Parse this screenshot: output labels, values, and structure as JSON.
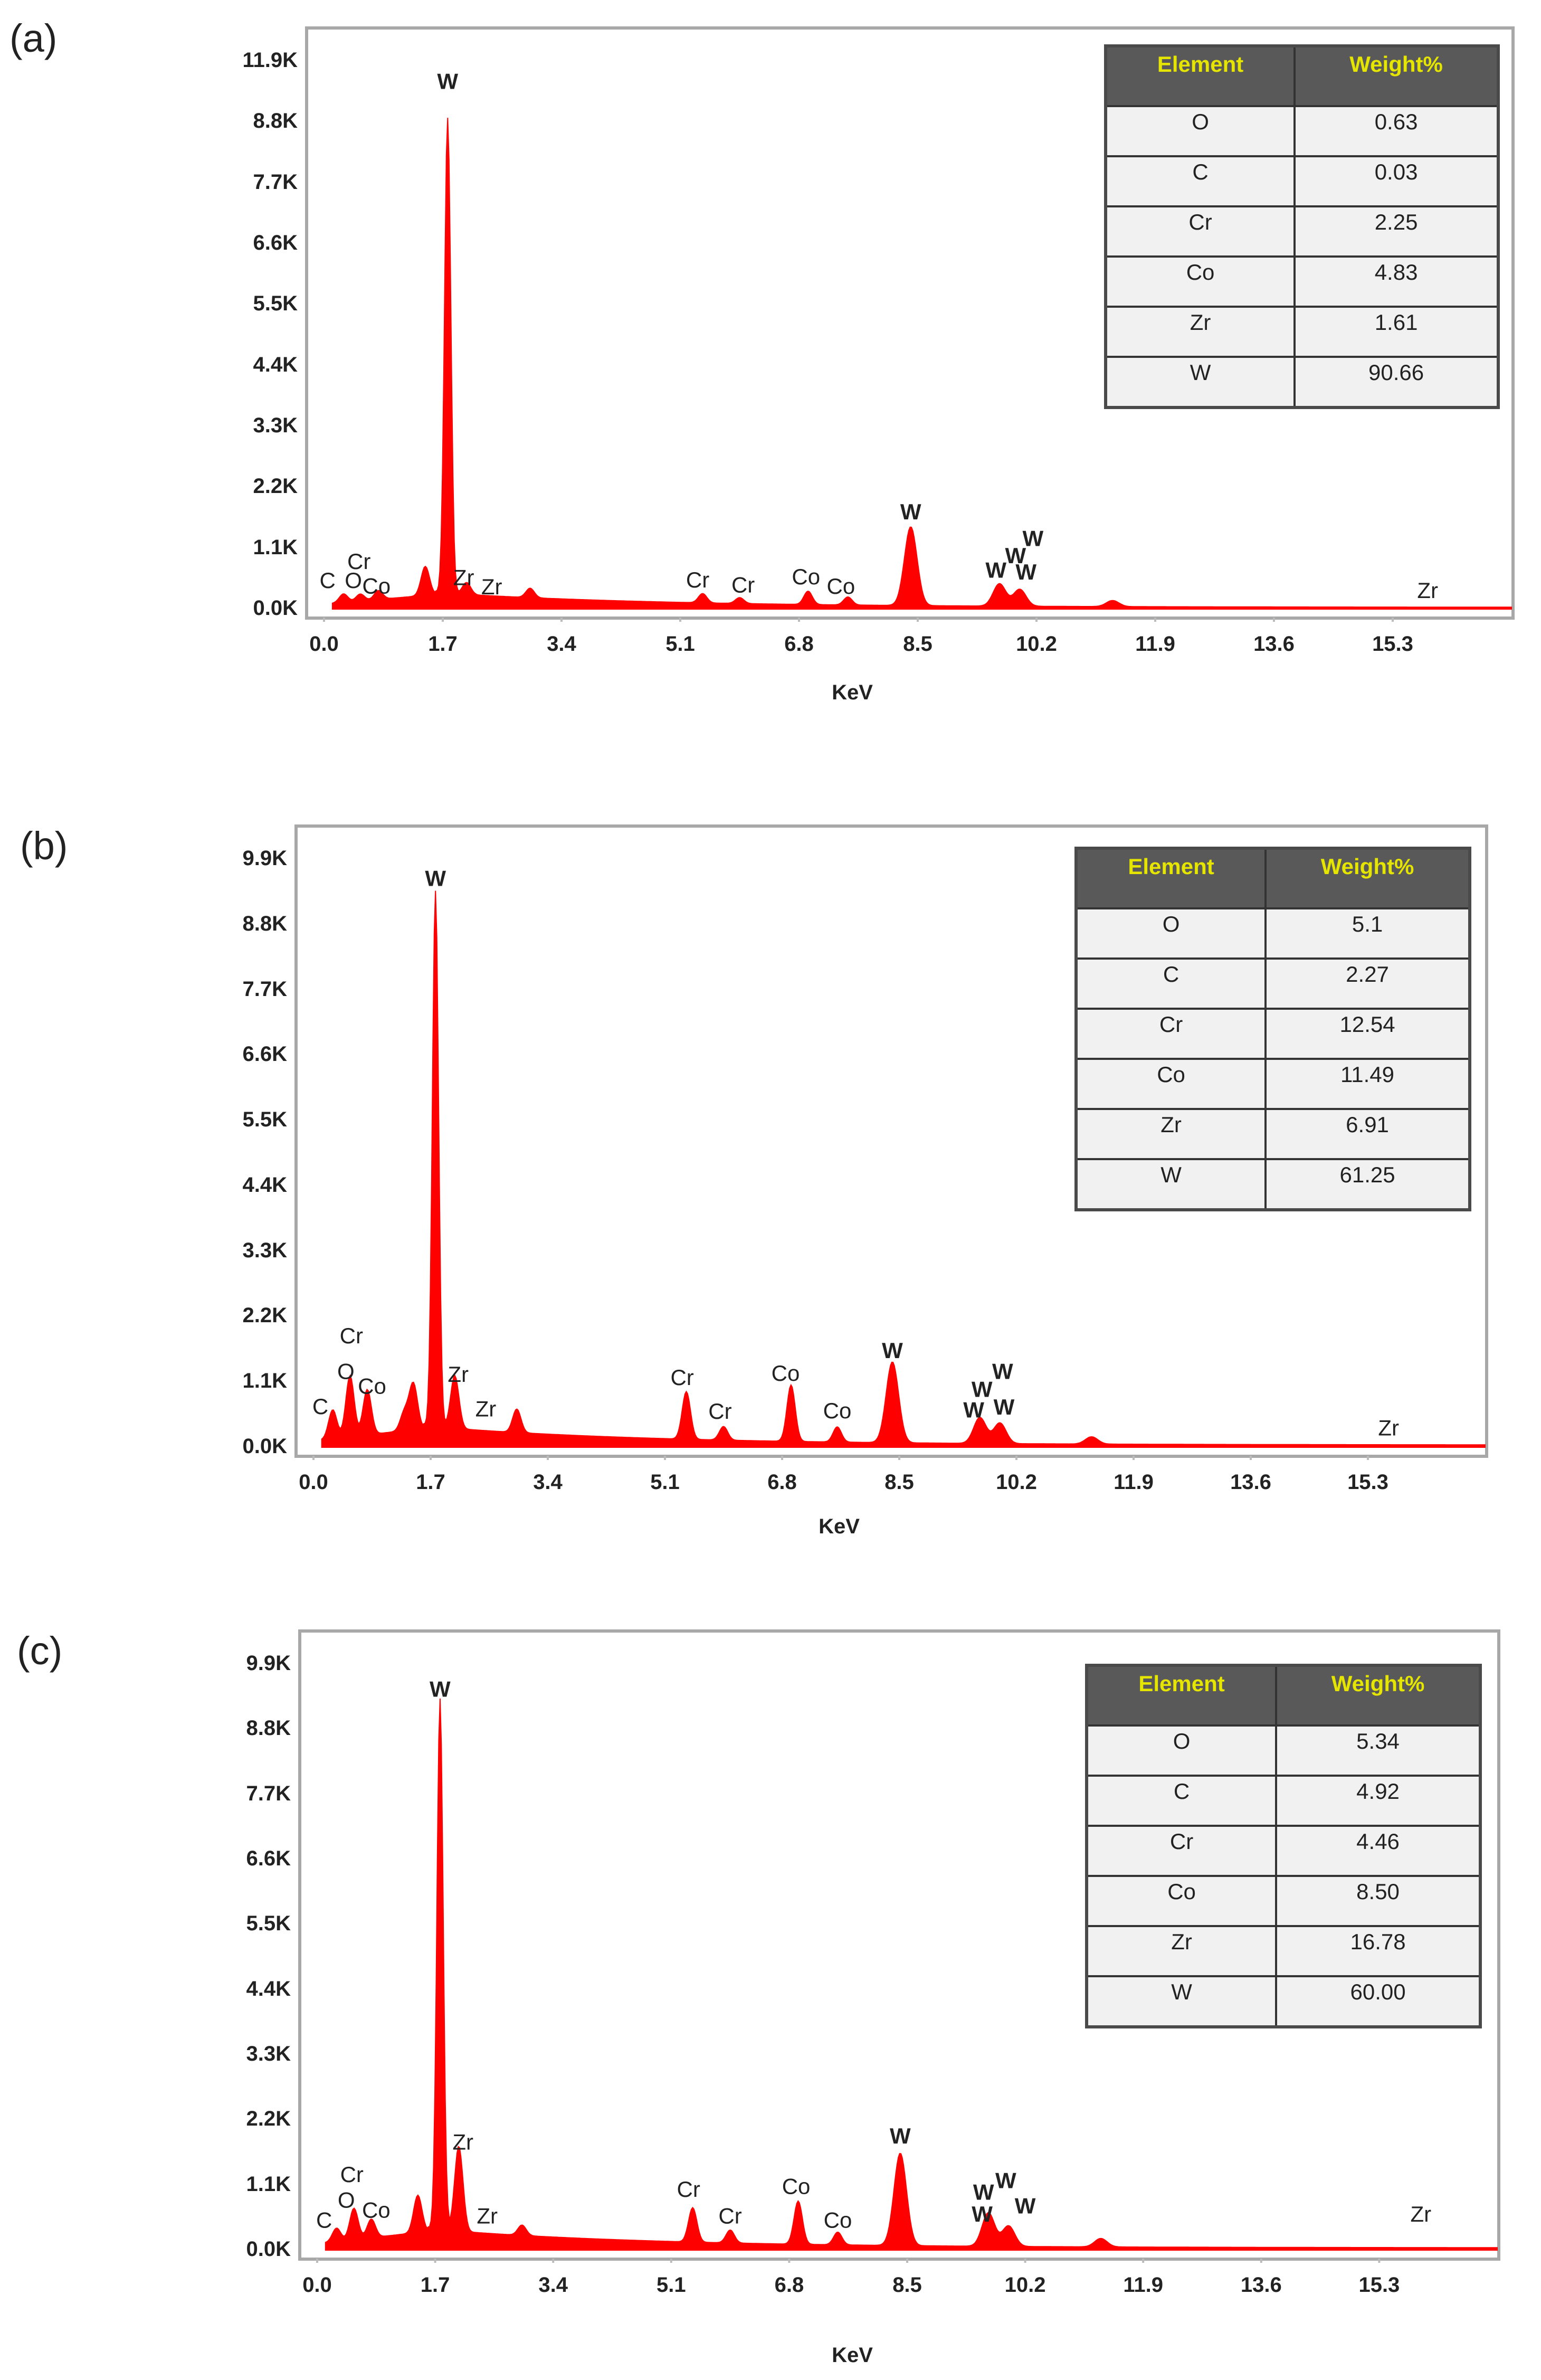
{
  "chart_data": [
    {
      "id": "a",
      "type": "area",
      "panel_label": "(a)",
      "title": "",
      "xlabel": "KeV",
      "ylabel": "",
      "x_ticks": [
        "0.0",
        "1.7",
        "3.4",
        "5.1",
        "6.8",
        "8.5",
        "10.2",
        "11.9",
        "13.6",
        "15.3"
      ],
      "y_ticks": [
        "0.0K",
        "1.1K",
        "2.2K",
        "3.3K",
        "4.4K",
        "5.5K",
        "6.6K",
        "7.7K",
        "8.8K",
        "11.9K"
      ],
      "xlim": [
        0.0,
        17.0
      ],
      "ylim": [
        0,
        11900
      ],
      "grid": false,
      "color": "#ff0000",
      "peaks": [
        {
          "x": 0.28,
          "y": 260
        },
        {
          "x": 0.52,
          "y": 240
        },
        {
          "x": 0.78,
          "y": 300
        },
        {
          "x": 1.45,
          "y": 780
        },
        {
          "x": 1.77,
          "y": 10500
        },
        {
          "x": 2.04,
          "y": 420
        },
        {
          "x": 2.95,
          "y": 330
        },
        {
          "x": 5.42,
          "y": 270
        },
        {
          "x": 5.95,
          "y": 190
        },
        {
          "x": 6.93,
          "y": 340
        },
        {
          "x": 7.5,
          "y": 220
        },
        {
          "x": 8.4,
          "y": 1750
        },
        {
          "x": 9.67,
          "y": 520
        },
        {
          "x": 9.96,
          "y": 400
        },
        {
          "x": 11.29,
          "y": 160
        }
      ],
      "peak_labels": [
        {
          "text": "C",
          "x": 0.05,
          "y": 460,
          "bold": false
        },
        {
          "text": "O",
          "x": 0.42,
          "y": 460,
          "bold": false
        },
        {
          "text": "Cr",
          "x": 0.5,
          "y": 870,
          "bold": false
        },
        {
          "text": "Co",
          "x": 0.75,
          "y": 340,
          "bold": false
        },
        {
          "text": "W",
          "x": 1.77,
          "y": 11300,
          "bold": true
        },
        {
          "text": "Zr",
          "x": 2.0,
          "y": 520,
          "bold": false
        },
        {
          "text": "Zr",
          "x": 2.4,
          "y": 320,
          "bold": false
        },
        {
          "text": "Cr",
          "x": 5.35,
          "y": 470,
          "bold": false
        },
        {
          "text": "Cr",
          "x": 6.0,
          "y": 360,
          "bold": false
        },
        {
          "text": "Co",
          "x": 6.9,
          "y": 540,
          "bold": false
        },
        {
          "text": "Co",
          "x": 7.4,
          "y": 330,
          "bold": false
        },
        {
          "text": "W",
          "x": 8.4,
          "y": 1950,
          "bold": true
        },
        {
          "text": "W",
          "x": 9.62,
          "y": 680,
          "bold": true
        },
        {
          "text": "W",
          "x": 9.9,
          "y": 1000,
          "bold": true
        },
        {
          "text": "W",
          "x": 10.15,
          "y": 1370,
          "bold": true
        },
        {
          "text": "W",
          "x": 10.05,
          "y": 640,
          "bold": true
        },
        {
          "text": "Zr",
          "x": 15.8,
          "y": 240,
          "bold": false
        }
      ],
      "table": {
        "headers": [
          "Element",
          "Weight%"
        ],
        "rows": [
          [
            "O",
            "0.63"
          ],
          [
            "C",
            "0.03"
          ],
          [
            "Cr",
            "2.25"
          ],
          [
            "Co",
            "4.83"
          ],
          [
            "Zr",
            "1.61"
          ],
          [
            "W",
            "90.66"
          ]
        ]
      }
    },
    {
      "id": "b",
      "type": "area",
      "panel_label": "(b)",
      "title": "",
      "xlabel": "KeV",
      "ylabel": "",
      "x_ticks": [
        "0.0",
        "1.7",
        "3.4",
        "5.1",
        "6.8",
        "8.5",
        "10.2",
        "11.9",
        "13.6",
        "15.3"
      ],
      "y_ticks": [
        "0.0K",
        "1.1K",
        "2.2K",
        "3.3K",
        "4.4K",
        "5.5K",
        "6.6K",
        "7.7K",
        "8.8K",
        "9.9K"
      ],
      "xlim": [
        0.0,
        17.0
      ],
      "ylim": [
        0,
        9900
      ],
      "grid": false,
      "color": "#ff0000",
      "peaks": [
        {
          "x": 0.28,
          "y": 560
        },
        {
          "x": 0.53,
          "y": 1120
        },
        {
          "x": 0.78,
          "y": 870
        },
        {
          "x": 1.32,
          "y": 450
        },
        {
          "x": 1.45,
          "y": 920
        },
        {
          "x": 1.77,
          "y": 9200
        },
        {
          "x": 2.05,
          "y": 1050
        },
        {
          "x": 2.95,
          "y": 520
        },
        {
          "x": 5.41,
          "y": 870
        },
        {
          "x": 5.95,
          "y": 290
        },
        {
          "x": 6.93,
          "y": 1000
        },
        {
          "x": 7.6,
          "y": 300
        },
        {
          "x": 8.4,
          "y": 1400
        },
        {
          "x": 9.67,
          "y": 470
        },
        {
          "x": 9.96,
          "y": 380
        },
        {
          "x": 11.29,
          "y": 150
        }
      ],
      "peak_labels": [
        {
          "text": "C",
          "x": 0.1,
          "y": 560,
          "bold": false
        },
        {
          "text": "O",
          "x": 0.47,
          "y": 1150,
          "bold": false
        },
        {
          "text": "Cr",
          "x": 0.55,
          "y": 1750,
          "bold": false
        },
        {
          "text": "Co",
          "x": 0.85,
          "y": 900,
          "bold": false
        },
        {
          "text": "W",
          "x": 1.77,
          "y": 9450,
          "bold": true
        },
        {
          "text": "Zr",
          "x": 2.1,
          "y": 1100,
          "bold": false
        },
        {
          "text": "Zr",
          "x": 2.5,
          "y": 520,
          "bold": false
        },
        {
          "text": "Cr",
          "x": 5.35,
          "y": 1050,
          "bold": false
        },
        {
          "text": "Cr",
          "x": 5.9,
          "y": 480,
          "bold": false
        },
        {
          "text": "Co",
          "x": 6.85,
          "y": 1120,
          "bold": false
        },
        {
          "text": "Co",
          "x": 7.6,
          "y": 490,
          "bold": false
        },
        {
          "text": "W",
          "x": 8.4,
          "y": 1500,
          "bold": true
        },
        {
          "text": "W",
          "x": 9.58,
          "y": 500,
          "bold": true
        },
        {
          "text": "W",
          "x": 9.7,
          "y": 850,
          "bold": true
        },
        {
          "text": "W",
          "x": 10.0,
          "y": 1150,
          "bold": true
        },
        {
          "text": "W",
          "x": 10.02,
          "y": 550,
          "bold": true
        },
        {
          "text": "Zr",
          "x": 15.6,
          "y": 200,
          "bold": false
        }
      ],
      "table": {
        "headers": [
          "Element",
          "Weight%"
        ],
        "rows": [
          [
            "O",
            "5.1"
          ],
          [
            "C",
            "2.27"
          ],
          [
            "Cr",
            "12.54"
          ],
          [
            "Co",
            "11.49"
          ],
          [
            "Zr",
            "6.91"
          ],
          [
            "W",
            "61.25"
          ]
        ]
      }
    },
    {
      "id": "c",
      "type": "area",
      "panel_label": "(c)",
      "title": "",
      "xlabel": "KeV",
      "ylabel": "",
      "x_ticks": [
        "0.0",
        "1.7",
        "3.4",
        "5.1",
        "6.8",
        "8.5",
        "10.2",
        "11.9",
        "13.6",
        "15.3"
      ],
      "y_ticks": [
        "0.0K",
        "1.1K",
        "2.2K",
        "3.3K",
        "4.4K",
        "5.5K",
        "6.6K",
        "7.7K",
        "8.8K",
        "9.9K"
      ],
      "xlim": [
        0.0,
        17.0
      ],
      "ylim": [
        0,
        9900
      ],
      "grid": false,
      "color": "#ff0000",
      "peaks": [
        {
          "x": 0.28,
          "y": 300
        },
        {
          "x": 0.53,
          "y": 620
        },
        {
          "x": 0.78,
          "y": 420
        },
        {
          "x": 1.45,
          "y": 780
        },
        {
          "x": 1.77,
          "y": 9150
        },
        {
          "x": 2.04,
          "y": 1600
        },
        {
          "x": 2.95,
          "y": 300
        },
        {
          "x": 5.41,
          "y": 650
        },
        {
          "x": 5.95,
          "y": 280
        },
        {
          "x": 6.93,
          "y": 780
        },
        {
          "x": 7.5,
          "y": 260
        },
        {
          "x": 8.4,
          "y": 1600
        },
        {
          "x": 9.67,
          "y": 600
        },
        {
          "x": 9.96,
          "y": 380
        },
        {
          "x": 11.29,
          "y": 170
        }
      ],
      "peak_labels": [
        {
          "text": "C",
          "x": 0.1,
          "y": 380,
          "bold": false
        },
        {
          "text": "O",
          "x": 0.42,
          "y": 720,
          "bold": false
        },
        {
          "text": "Cr",
          "x": 0.5,
          "y": 1150,
          "bold": false
        },
        {
          "text": "Co",
          "x": 0.85,
          "y": 550,
          "bold": false
        },
        {
          "text": "W",
          "x": 1.77,
          "y": 9350,
          "bold": true
        },
        {
          "text": "Zr",
          "x": 2.1,
          "y": 1700,
          "bold": false
        },
        {
          "text": "Zr",
          "x": 2.45,
          "y": 450,
          "bold": false
        },
        {
          "text": "Cr",
          "x": 5.35,
          "y": 900,
          "bold": false
        },
        {
          "text": "Cr",
          "x": 5.95,
          "y": 450,
          "bold": false
        },
        {
          "text": "Co",
          "x": 6.9,
          "y": 950,
          "bold": false
        },
        {
          "text": "Co",
          "x": 7.5,
          "y": 380,
          "bold": false
        },
        {
          "text": "W",
          "x": 8.4,
          "y": 1800,
          "bold": true
        },
        {
          "text": "W",
          "x": 9.6,
          "y": 850,
          "bold": true
        },
        {
          "text": "W",
          "x": 9.92,
          "y": 1050,
          "bold": true
        },
        {
          "text": "W",
          "x": 9.58,
          "y": 480,
          "bold": true
        },
        {
          "text": "W",
          "x": 10.2,
          "y": 620,
          "bold": true
        },
        {
          "text": "Zr",
          "x": 15.9,
          "y": 480,
          "bold": false
        }
      ],
      "table": {
        "headers": [
          "Element",
          "Weight%"
        ],
        "rows": [
          [
            "O",
            "5.34"
          ],
          [
            "C",
            "4.92"
          ],
          [
            "Cr",
            "4.46"
          ],
          [
            "Co",
            "8.50"
          ],
          [
            "Zr",
            "16.78"
          ],
          [
            "W",
            "60.00"
          ]
        ]
      }
    }
  ]
}
